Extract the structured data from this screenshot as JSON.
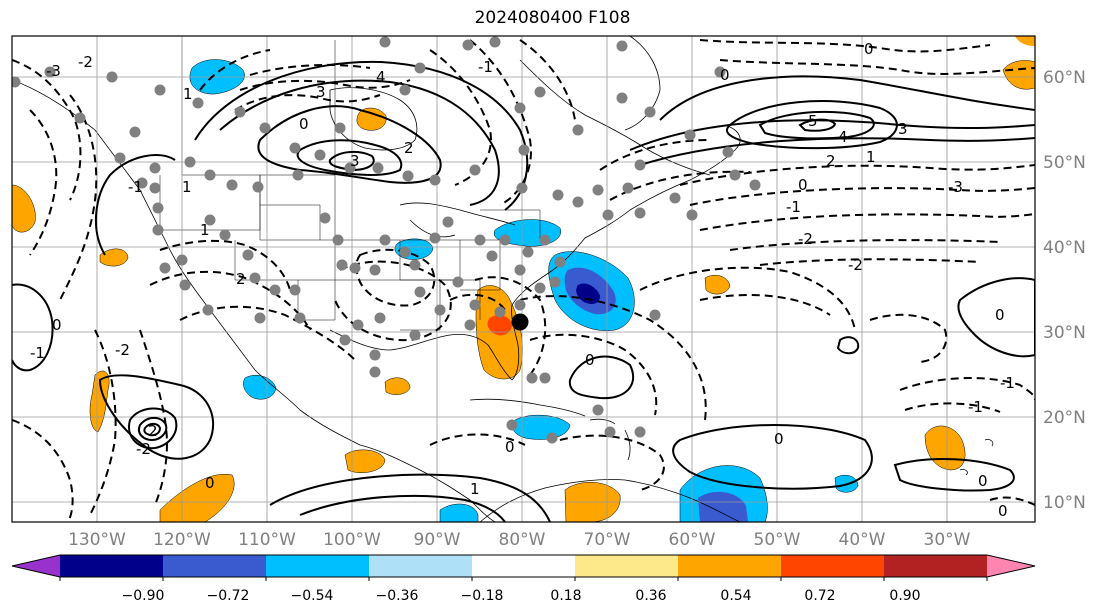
{
  "title": "2024080400 F108",
  "colors": {
    "purple": "#9932cc",
    "navy": "#00008b",
    "blue": "#3a5bd0",
    "deepskyblue": "#00bfff",
    "lightblue": "#aee0f8",
    "white": "#ffffff",
    "lightyellow": "#fde88a",
    "orange": "#ffa500",
    "orangered": "#ff4500",
    "firebrick": "#b22222",
    "pink": "#ff85b0"
  },
  "axes": {
    "longitude_ticks": [
      "130°W",
      "120°W",
      "110°W",
      "100°W",
      "90°W",
      "80°W",
      "70°W",
      "60°W",
      "50°W",
      "40°W",
      "30°W"
    ],
    "latitude_ticks": [
      "60°N",
      "50°N",
      "40°N",
      "30°N",
      "20°N",
      "10°N"
    ]
  },
  "colorbar": {
    "ticks": [
      "−0.90",
      "−0.72",
      "−0.54",
      "−0.36",
      "−0.18",
      "0.18",
      "0.36",
      "0.54",
      "0.72",
      "0.90"
    ],
    "bins": [
      "purple",
      "navy",
      "blue",
      "deepskyblue",
      "lightblue",
      "white",
      "lightyellow",
      "orange",
      "orangered",
      "firebrick",
      "pink"
    ]
  },
  "contour_labels": [
    "4",
    "3",
    "2",
    "1",
    "0",
    "-1",
    "-2",
    "-3",
    "5",
    "4",
    "3",
    "2",
    "1",
    "0",
    "0",
    "-1",
    "-2",
    "-3",
    "0",
    "-1",
    "-2",
    "0",
    "0",
    "-1",
    "0",
    "3",
    "2",
    "1",
    "-2",
    "0",
    "-1",
    "0",
    "1",
    "-2",
    "2",
    "0",
    "0",
    "0",
    "-1",
    "1"
  ]
}
